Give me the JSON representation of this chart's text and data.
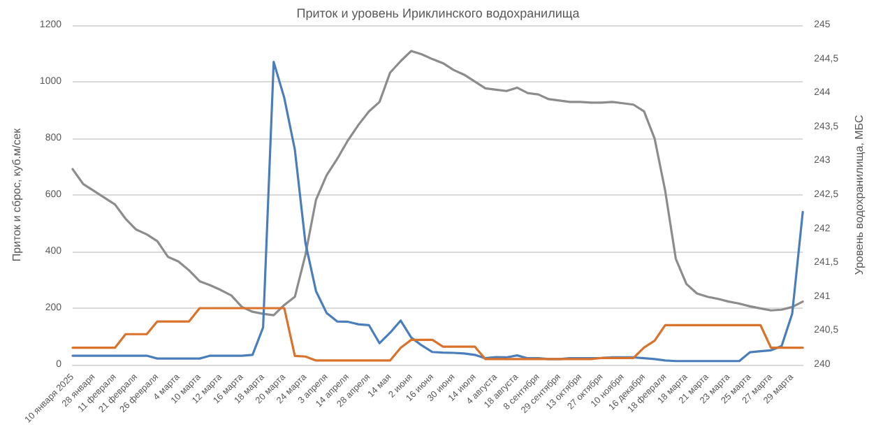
{
  "chart_data": {
    "type": "line",
    "title": "Приток и уровень Ириклинского водохранилища",
    "ylabel": "Приток и сброс, куб.м/сек",
    "y2label": "Уровень водохранилища, МБС",
    "categories": [
      "10 января 2025",
      null,
      "28 января",
      null,
      "11 февраля",
      null,
      "21 февраля",
      null,
      "26 февраля",
      null,
      "4 марта",
      null,
      "10 марта",
      null,
      "12 марта",
      null,
      "16 марта",
      null,
      "18 марта",
      null,
      "20 марта",
      null,
      "24 марта",
      null,
      "3 апреля",
      null,
      "14 апреля",
      null,
      "28 апреля",
      null,
      "14 мая",
      null,
      "2 июня",
      null,
      "16 июня",
      null,
      "30 июня",
      null,
      "14 июля",
      null,
      "4 августа",
      null,
      "18 августа",
      null,
      "8 сентября",
      null,
      "29 сентября",
      null,
      "13 октября",
      null,
      "27 октября",
      null,
      "10 ноября",
      null,
      "16 декабря",
      null,
      "18 февраля",
      null,
      "18 марта",
      null,
      "21 марта",
      null,
      "23 марта",
      null,
      "25 марта",
      null,
      "27 марта",
      null,
      "29 марта",
      null
    ],
    "series": [
      {
        "color": "#4a7ebb",
        "values": [
          32,
          32,
          32,
          32,
          32,
          32,
          32,
          32,
          22,
          22,
          22,
          22,
          22,
          32,
          32,
          32,
          32,
          35,
          132,
          1070,
          943,
          760,
          430,
          260,
          183,
          153,
          152,
          143,
          140,
          76,
          113,
          156,
          96,
          68,
          45,
          43,
          42,
          40,
          35,
          23,
          27,
          26,
          33,
          23,
          23,
          20,
          20,
          23,
          23,
          23,
          24,
          26,
          26,
          26,
          23,
          20,
          15,
          13,
          13,
          13,
          13,
          13,
          13,
          13,
          44,
          48,
          51,
          66,
          180,
          540
        ]
      },
      {
        "color": "#d9722a",
        "values": [
          60,
          60,
          60,
          60,
          60,
          108,
          108,
          108,
          153,
          153,
          153,
          153,
          200,
          200,
          200,
          200,
          200,
          200,
          200,
          200,
          200,
          31,
          29,
          15,
          15,
          15,
          15,
          15,
          15,
          15,
          15,
          60,
          88,
          88,
          88,
          64,
          64,
          64,
          64,
          20,
          20,
          20,
          20,
          20,
          20,
          20,
          20,
          20,
          20,
          20,
          24,
          24,
          24,
          24,
          61,
          85,
          140,
          140,
          140,
          140,
          140,
          140,
          140,
          140,
          140,
          140,
          60,
          60,
          60,
          60
        ]
      },
      {
        "color": "#8c8c8c",
        "axis": "y2",
        "values": [
          242.88,
          242.66,
          242.56,
          242.46,
          242.36,
          242.15,
          241.99,
          241.92,
          241.82,
          241.59,
          241.52,
          241.39,
          241.23,
          241.17,
          241.1,
          241.02,
          240.85,
          240.78,
          240.75,
          240.73,
          240.88,
          241.0,
          241.62,
          242.43,
          242.79,
          243.03,
          243.3,
          243.53,
          243.73,
          243.87,
          244.3,
          244.47,
          244.62,
          244.57,
          244.5,
          244.44,
          244.34,
          244.27,
          244.17,
          244.07,
          244.05,
          244.03,
          244.08,
          244.0,
          243.98,
          243.91,
          243.89,
          243.87,
          243.87,
          243.86,
          243.86,
          243.87,
          243.85,
          243.83,
          243.73,
          243.33,
          242.56,
          241.56,
          241.19,
          241.05,
          241.0,
          240.97,
          240.93,
          240.9,
          240.86,
          240.83,
          240.8,
          240.81,
          240.85,
          240.93
        ]
      }
    ],
    "ylim": [
      0,
      1200
    ],
    "yticks": [
      0,
      200,
      400,
      600,
      800,
      1000,
      1200
    ],
    "y2lim": [
      240,
      245
    ],
    "y2ticks": [
      {
        "value": 240,
        "label": "240"
      },
      {
        "value": 240.5,
        "label": "240,5"
      },
      {
        "value": 241,
        "label": "241"
      },
      {
        "value": 241.5,
        "label": "241,5"
      },
      {
        "value": 242,
        "label": "242"
      },
      {
        "value": 242.5,
        "label": "242,5"
      },
      {
        "value": 243,
        "label": "243"
      },
      {
        "value": 243.5,
        "label": "243,5"
      },
      {
        "value": 244,
        "label": "244"
      },
      {
        "value": 244.5,
        "label": "244,5"
      },
      {
        "value": 245,
        "label": "245"
      }
    ],
    "grid": "y",
    "marker": "none",
    "line_style": "solid"
  }
}
